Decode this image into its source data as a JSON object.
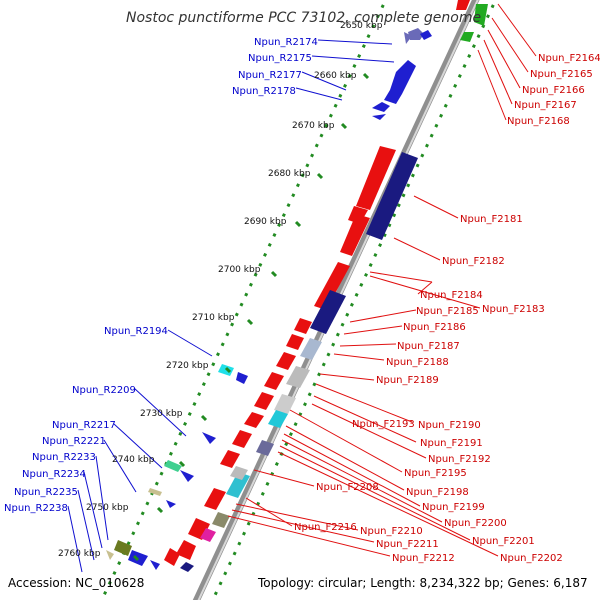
{
  "title": "Nostoc punctiforme PCC 73102, complete genome",
  "footer": {
    "accession": "Accession: NC_010628",
    "topology": "Topology: circular; Length: 8,234,322 bp; Genes: 6,187"
  },
  "colors": {
    "forward_label": "#cc0000",
    "reverse_label": "#0000cc",
    "backbone": "#9a9a9a",
    "tick_line": "#228b22"
  },
  "kbp_ticks": [
    "2650 kbp",
    "2660 kbp",
    "2670 kbp",
    "2680 kbp",
    "2690 kbp",
    "2700 kbp",
    "2710 kbp",
    "2720 kbp",
    "2730 kbp",
    "2740 kbp",
    "2750 kbp",
    "2760 kbp"
  ],
  "right_labels": [
    "Npun_F2164",
    "Npun_F2165",
    "Npun_F2166",
    "Npun_F2167",
    "Npun_F2168",
    "Npun_F2181",
    "Npun_F2182",
    "Npun_F2184",
    "Npun_F2183",
    "Npun_F2185",
    "Npun_F2186",
    "Npun_F2187",
    "Npun_F2188",
    "Npun_F2189",
    "Npun_F2193",
    "Npun_F2190",
    "Npun_F2191",
    "Npun_F2192",
    "Npun_F2195",
    "Npun_F2208",
    "Npun_F2198",
    "Npun_F2199",
    "Npun_F2200",
    "Npun_F2216",
    "Npun_F2210",
    "Npun_F2201",
    "Npun_F2211",
    "Npun_F2202",
    "Npun_F2212"
  ],
  "left_labels": [
    "Npun_R2174",
    "Npun_R2175",
    "Npun_R2177",
    "Npun_R2178",
    "Npun_R2194",
    "Npun_R2209",
    "Npun_R2217",
    "Npun_R2221",
    "Npun_R2233",
    "Npun_R2234",
    "Npun_R2235",
    "Npun_R2238"
  ]
}
